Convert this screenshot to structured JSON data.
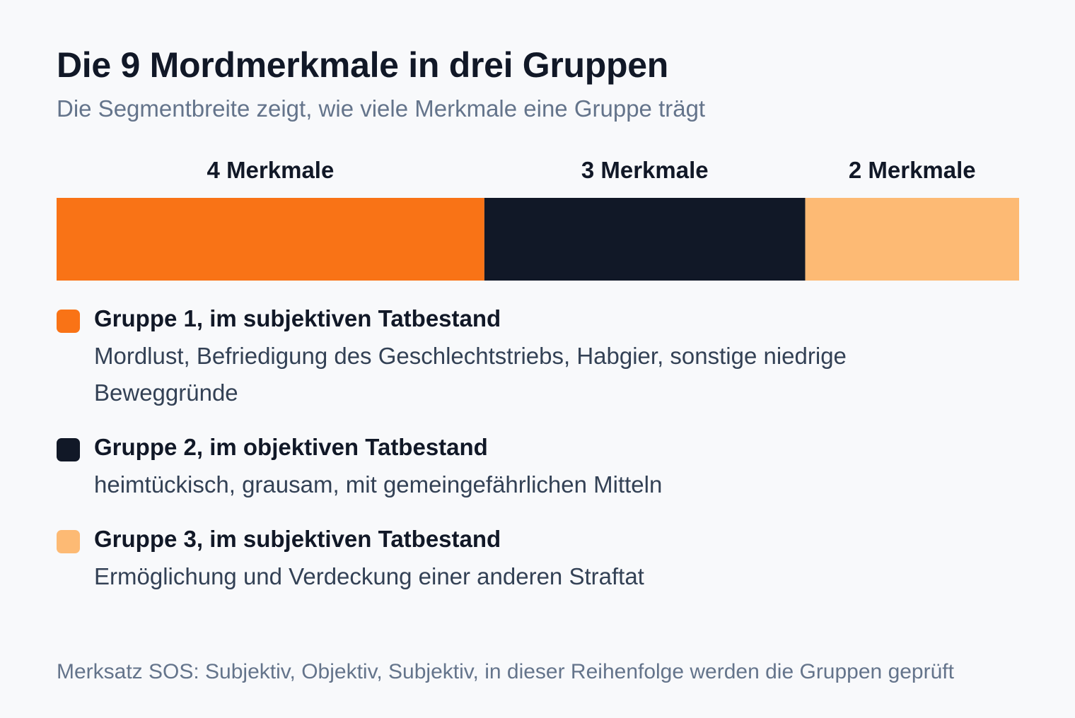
{
  "title": "Die 9 Mordmerkmale in drei Gruppen",
  "subtitle": "Die Segmentbreite zeigt, wie viele Merkmale eine Gruppe trägt",
  "chart_data": {
    "type": "bar",
    "stacked": true,
    "orientation": "horizontal",
    "title": "Die 9 Mordmerkmale in drei Gruppen",
    "subtitle": "Die Segmentbreite zeigt, wie viele Merkmale eine Gruppe trägt",
    "total": 9,
    "grid": false,
    "segments": [
      {
        "name": "Gruppe 1, im subjektiven Tatbestand",
        "value": 4,
        "label": "4 Merkmale",
        "color": "#f97316"
      },
      {
        "name": "Gruppe 2, im objektiven Tatbestand",
        "value": 3,
        "label": "3 Merkmale",
        "color": "#111827"
      },
      {
        "name": "Gruppe 3, im subjektiven Tatbestand",
        "value": 2,
        "label": "2 Merkmale",
        "color": "#fdba74"
      }
    ]
  },
  "legend": [
    {
      "title": "Gruppe 1, im subjektiven Tatbestand",
      "description": "Mordlust, Befriedigung des Geschlechtstriebs, Habgier, sonstige niedrige Beweggründe",
      "color": "#f97316"
    },
    {
      "title": "Gruppe 2, im objektiven Tatbestand",
      "description": "heimtückisch, grausam, mit gemeingefährlichen Mitteln",
      "color": "#111827"
    },
    {
      "title": "Gruppe 3, im subjektiven Tatbestand",
      "description": "Ermöglichung und Verdeckung einer anderen Straftat",
      "color": "#fdba74"
    }
  ],
  "footnote": "Merksatz SOS: Subjektiv, Objektiv, Subjektiv, in dieser Reihenfolge werden die Gruppen geprüft"
}
